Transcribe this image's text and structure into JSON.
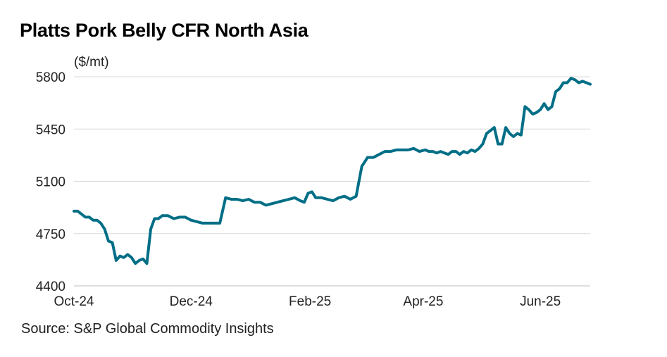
{
  "chart_data": {
    "type": "line",
    "title": "Platts Pork Belly CFR North Asia",
    "ylabel": "($/mt)",
    "xlabel": "",
    "ylim": [
      4400,
      5800
    ],
    "yticks": [
      4400,
      4750,
      5100,
      5450,
      5800
    ],
    "xlim": [
      "2024-10-01",
      "2025-06-27"
    ],
    "xticks": [
      {
        "date": "2024-10-01",
        "label": "Oct-24"
      },
      {
        "date": "2024-12-01",
        "label": "Dec-24"
      },
      {
        "date": "2025-02-01",
        "label": "Feb-25"
      },
      {
        "date": "2025-04-01",
        "label": "Apr-25"
      },
      {
        "date": "2025-06-01",
        "label": "Jun-25"
      }
    ],
    "grid": "horizontal",
    "line_color": "#006e86",
    "series": [
      {
        "x": [
          "2024-10-01",
          "2024-10-03",
          "2024-10-05",
          "2024-10-07",
          "2024-10-09",
          "2024-10-11",
          "2024-10-13",
          "2024-10-15",
          "2024-10-17",
          "2024-10-19",
          "2024-10-21",
          "2024-10-23",
          "2024-10-25",
          "2024-10-27",
          "2024-10-29",
          "2024-10-31",
          "2024-11-02",
          "2024-11-04",
          "2024-11-06",
          "2024-11-08",
          "2024-11-10",
          "2024-11-12",
          "2024-11-14",
          "2024-11-16",
          "2024-11-19",
          "2024-11-22",
          "2024-11-25",
          "2024-11-28",
          "2024-12-01",
          "2024-12-04",
          "2024-12-07",
          "2024-12-10",
          "2024-12-13",
          "2024-12-16",
          "2024-12-19",
          "2024-12-22",
          "2024-12-25",
          "2024-12-28",
          "2024-12-31",
          "2025-01-03",
          "2025-01-06",
          "2025-01-09",
          "2025-01-12",
          "2025-01-15",
          "2025-01-18",
          "2025-01-21",
          "2025-01-24",
          "2025-01-27",
          "2025-01-29",
          "2025-01-31",
          "2025-02-02",
          "2025-02-04",
          "2025-02-07",
          "2025-02-10",
          "2025-02-13",
          "2025-02-16",
          "2025-02-19",
          "2025-02-22",
          "2025-02-25",
          "2025-02-28",
          "2025-03-03",
          "2025-03-06",
          "2025-03-09",
          "2025-03-12",
          "2025-03-15",
          "2025-03-18",
          "2025-03-21",
          "2025-03-24",
          "2025-03-27",
          "2025-03-30",
          "2025-04-02",
          "2025-04-04",
          "2025-04-06",
          "2025-04-08",
          "2025-04-10",
          "2025-04-12",
          "2025-04-14",
          "2025-04-16",
          "2025-04-18",
          "2025-04-20",
          "2025-04-22",
          "2025-04-24",
          "2025-04-26",
          "2025-04-28",
          "2025-04-30",
          "2025-05-02",
          "2025-05-04",
          "2025-05-06",
          "2025-05-08",
          "2025-05-10",
          "2025-05-12",
          "2025-05-14",
          "2025-05-16",
          "2025-05-18",
          "2025-05-20",
          "2025-05-22",
          "2025-05-24",
          "2025-05-26",
          "2025-05-28",
          "2025-05-30",
          "2025-06-01",
          "2025-06-03",
          "2025-06-05",
          "2025-06-07",
          "2025-06-09",
          "2025-06-11",
          "2025-06-13",
          "2025-06-15",
          "2025-06-17",
          "2025-06-19",
          "2025-06-21",
          "2025-06-23",
          "2025-06-25",
          "2025-06-27"
        ],
        "values": [
          4900,
          4900,
          4880,
          4860,
          4860,
          4840,
          4840,
          4820,
          4780,
          4700,
          4690,
          4570,
          4600,
          4590,
          4610,
          4590,
          4550,
          4570,
          4580,
          4550,
          4780,
          4850,
          4850,
          4870,
          4870,
          4850,
          4860,
          4860,
          4840,
          4830,
          4820,
          4820,
          4820,
          4820,
          4990,
          4980,
          4980,
          4970,
          4980,
          4960,
          4960,
          4940,
          4950,
          4960,
          4970,
          4980,
          4990,
          4970,
          4960,
          5020,
          5030,
          4990,
          4990,
          4980,
          4970,
          4990,
          5000,
          4980,
          5000,
          5200,
          5260,
          5260,
          5280,
          5300,
          5300,
          5310,
          5310,
          5310,
          5320,
          5300,
          5310,
          5300,
          5300,
          5290,
          5300,
          5290,
          5280,
          5300,
          5300,
          5280,
          5300,
          5290,
          5310,
          5300,
          5320,
          5350,
          5420,
          5440,
          5460,
          5350,
          5350,
          5460,
          5420,
          5400,
          5420,
          5410,
          5600,
          5580,
          5550,
          5560,
          5580,
          5620,
          5580,
          5600,
          5700,
          5720,
          5760,
          5760,
          5790,
          5780,
          5760,
          5770,
          5760,
          5750
        ]
      }
    ]
  },
  "source": "Source: S&P Global Commodity Insights"
}
